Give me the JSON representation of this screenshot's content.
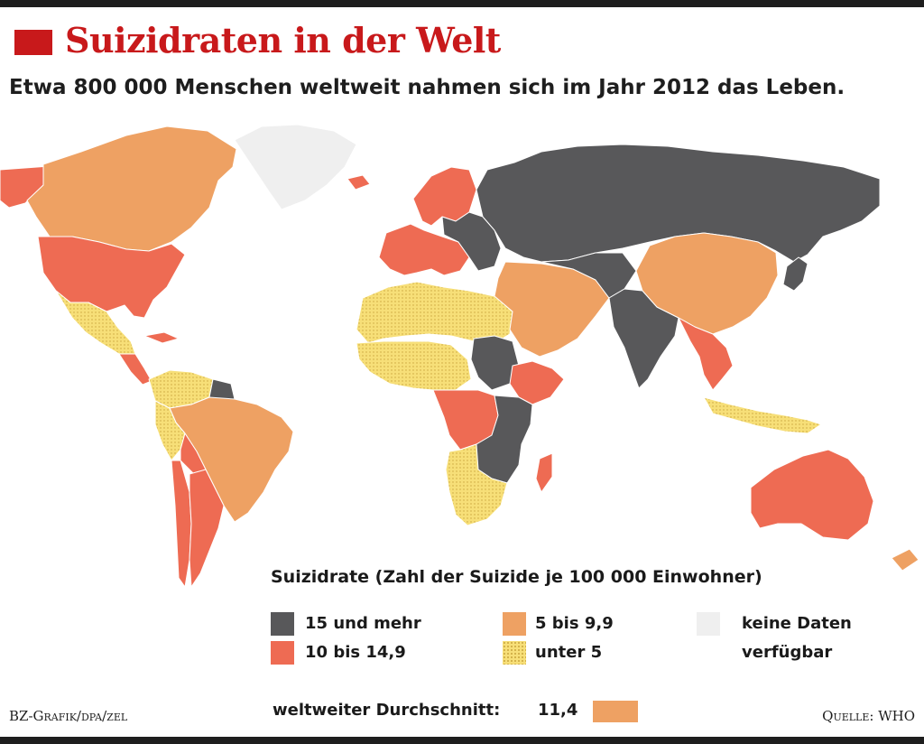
{
  "header": {
    "title": "Suizidraten in der Welt",
    "subtitle": "Etwa 800 000 Menschen weltweit nahmen sich im Jahr 2012 das Leben."
  },
  "map": {
    "colors": {
      "15_und_mehr": "#58585a",
      "10_bis_14_9": "#ee6b53",
      "5_bis_9_9": "#eea163",
      "unter_5": "#f7df78",
      "keine_daten": "#efefef"
    },
    "regions": [
      {
        "name": "alaska",
        "category": "10_bis_14_9"
      },
      {
        "name": "canada",
        "category": "5_bis_9_9"
      },
      {
        "name": "greenland",
        "category": "keine_daten"
      },
      {
        "name": "usa",
        "category": "10_bis_14_9"
      },
      {
        "name": "mexico",
        "category": "unter_5"
      },
      {
        "name": "cuba",
        "category": "10_bis_14_9"
      },
      {
        "name": "central-america",
        "category": "10_bis_14_9"
      },
      {
        "name": "venezuela-colombia",
        "category": "unter_5"
      },
      {
        "name": "guyana-suriname",
        "category": "15_und_mehr"
      },
      {
        "name": "brazil",
        "category": "5_bis_9_9"
      },
      {
        "name": "peru",
        "category": "unter_5"
      },
      {
        "name": "bolivia",
        "category": "10_bis_14_9"
      },
      {
        "name": "chile",
        "category": "10_bis_14_9"
      },
      {
        "name": "argentina",
        "category": "10_bis_14_9"
      },
      {
        "name": "iceland",
        "category": "10_bis_14_9"
      },
      {
        "name": "scandinavia",
        "category": "10_bis_14_9"
      },
      {
        "name": "western-europe",
        "category": "10_bis_14_9"
      },
      {
        "name": "eastern-europe",
        "category": "15_und_mehr"
      },
      {
        "name": "russia",
        "category": "15_und_mehr"
      },
      {
        "name": "north-africa",
        "category": "unter_5"
      },
      {
        "name": "west-africa",
        "category": "unter_5"
      },
      {
        "name": "sudan",
        "category": "15_und_mehr"
      },
      {
        "name": "ethiopia",
        "category": "10_bis_14_9"
      },
      {
        "name": "central-africa",
        "category": "10_bis_14_9"
      },
      {
        "name": "east-africa",
        "category": "15_und_mehr"
      },
      {
        "name": "southern-africa",
        "category": "unter_5"
      },
      {
        "name": "madagascar",
        "category": "10_bis_14_9"
      },
      {
        "name": "middle-east",
        "category": "5_bis_9_9"
      },
      {
        "name": "central-asia",
        "category": "15_und_mehr"
      },
      {
        "name": "india",
        "category": "15_und_mehr"
      },
      {
        "name": "china",
        "category": "5_bis_9_9"
      },
      {
        "name": "southeast-asia",
        "category": "10_bis_14_9"
      },
      {
        "name": "korea-japan",
        "category": "15_und_mehr"
      },
      {
        "name": "indonesia",
        "category": "unter_5"
      },
      {
        "name": "australia",
        "category": "10_bis_14_9"
      },
      {
        "name": "new-zealand",
        "category": "5_bis_9_9"
      }
    ]
  },
  "legend": {
    "title": "Suizidrate (Zahl der Suizide je 100 000 Einwohner)",
    "items": [
      {
        "key": "15_und_mehr",
        "label": "15 und mehr"
      },
      {
        "key": "10_bis_14_9",
        "label": "10 bis 14,9"
      },
      {
        "key": "5_bis_9_9",
        "label": "5 bis 9,9"
      },
      {
        "key": "unter_5",
        "label": "unter 5"
      },
      {
        "key": "keine_daten",
        "label_line1": "keine Daten",
        "label_line2": "verfügbar"
      }
    ],
    "average_label": "weltweiter Durchschnitt:",
    "average_value": "11,4"
  },
  "footer": {
    "credit": "BZ-Grafik/dpa/zel",
    "source": "Quelle: WHO"
  }
}
